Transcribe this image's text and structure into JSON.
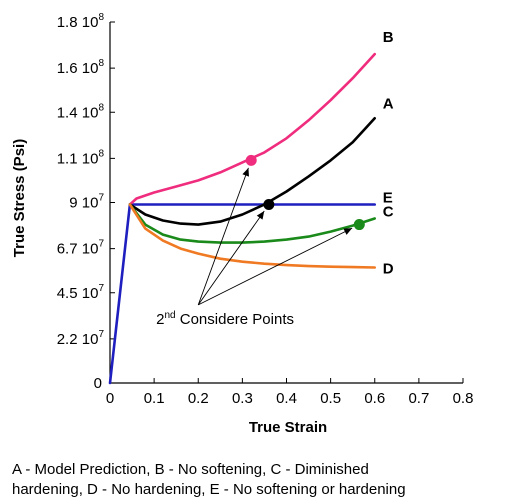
{
  "chart_data": {
    "type": "line",
    "xlabel": "True Strain",
    "ylabel": "True Stress (Psi)",
    "xlim": [
      0,
      0.8
    ],
    "ylim": [
      0,
      180000000
    ],
    "grid": false,
    "x_ticks": [
      {
        "v": 0,
        "label": "0"
      },
      {
        "v": 0.1,
        "label": "0.1"
      },
      {
        "v": 0.2,
        "label": "0.2"
      },
      {
        "v": 0.3,
        "label": "0.3"
      },
      {
        "v": 0.4,
        "label": "0.4"
      },
      {
        "v": 0.5,
        "label": "0.5"
      },
      {
        "v": 0.6,
        "label": "0.6"
      },
      {
        "v": 0.7,
        "label": "0.7"
      },
      {
        "v": 0.8,
        "label": "0.8"
      }
    ],
    "y_ticks": [
      {
        "v": 0,
        "mant": "0",
        "exp": ""
      },
      {
        "v": 22000000,
        "mant": "2.2 10",
        "exp": "7"
      },
      {
        "v": 45000000,
        "mant": "4.5 10",
        "exp": "7"
      },
      {
        "v": 67000000,
        "mant": "6.7 10",
        "exp": "7"
      },
      {
        "v": 90000000,
        "mant": "9 10",
        "exp": "7"
      },
      {
        "v": 112000000,
        "mant": "1.1 10",
        "exp": "8"
      },
      {
        "v": 135000000,
        "mant": "1.4 10",
        "exp": "8"
      },
      {
        "v": 157000000,
        "mant": "1.6 10",
        "exp": "8"
      },
      {
        "v": 180000000,
        "mant": "1.8 10",
        "exp": "8"
      }
    ],
    "series": [
      {
        "name": "E",
        "color": "#1f1fbf",
        "x": [
          0,
          0.045,
          0.1,
          0.2,
          0.3,
          0.4,
          0.5,
          0.6
        ],
        "y": [
          0,
          89000000,
          89000000,
          89000000,
          89000000,
          89000000,
          89000000,
          89000000
        ]
      },
      {
        "name": "B",
        "color": "#ef2c7d",
        "x": [
          0.045,
          0.06,
          0.1,
          0.15,
          0.2,
          0.25,
          0.3,
          0.35,
          0.4,
          0.45,
          0.5,
          0.55,
          0.6
        ],
        "y": [
          89000000,
          92000000,
          95000000,
          98000000,
          101000000,
          105000000,
          110000000,
          115000000,
          122000000,
          131000000,
          141000000,
          152000000,
          164000000
        ]
      },
      {
        "name": "A",
        "color": "#000000",
        "x": [
          0.045,
          0.08,
          0.12,
          0.16,
          0.2,
          0.25,
          0.3,
          0.35,
          0.4,
          0.45,
          0.5,
          0.55,
          0.6
        ],
        "y": [
          89000000,
          84000000,
          81000000,
          79500000,
          79000000,
          80500000,
          84000000,
          89000000,
          95500000,
          103000000,
          111000000,
          120000000,
          132000000
        ]
      },
      {
        "name": "C",
        "color": "#1a8a1a",
        "x": [
          0.045,
          0.08,
          0.12,
          0.16,
          0.2,
          0.25,
          0.3,
          0.35,
          0.4,
          0.45,
          0.5,
          0.55,
          0.6
        ],
        "y": [
          89000000,
          79000000,
          74000000,
          71500000,
          70500000,
          70000000,
          70000000,
          70500000,
          71500000,
          73000000,
          75500000,
          78500000,
          82000000
        ]
      },
      {
        "name": "D",
        "color": "#f07a23",
        "x": [
          0.045,
          0.08,
          0.12,
          0.16,
          0.2,
          0.25,
          0.3,
          0.35,
          0.4,
          0.45,
          0.5,
          0.55,
          0.6
        ],
        "y": [
          89000000,
          77000000,
          71000000,
          67000000,
          64500000,
          62000000,
          60500000,
          59500000,
          58800000,
          58300000,
          58000000,
          57800000,
          57600000
        ]
      }
    ],
    "considere_points": [
      {
        "series": "B",
        "x": 0.32,
        "y": 111000000,
        "color": "#ef2c7d"
      },
      {
        "series": "A",
        "x": 0.36,
        "y": 89000000,
        "color": "#000000"
      },
      {
        "series": "C",
        "x": 0.565,
        "y": 79000000,
        "color": "#1a8a1a"
      }
    ],
    "annotation": {
      "sup": "nd",
      "pre": "2",
      "text": " Considere Points",
      "x": 0.1,
      "y": 28000000
    },
    "caption_lines": [
      "A - Model Prediction, B - No softening, C - Diminished",
      "hardening, D - No hardening,  E - No softening or hardening"
    ]
  }
}
